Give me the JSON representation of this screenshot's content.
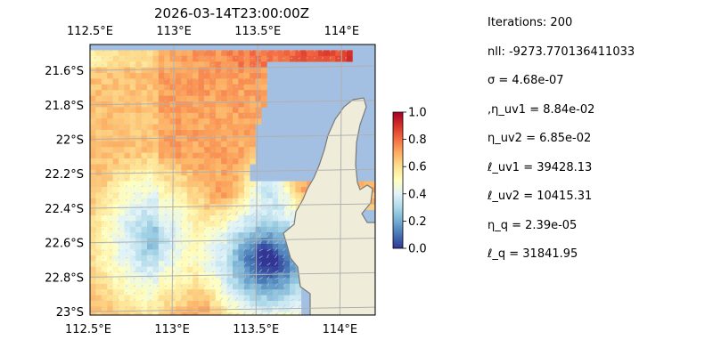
{
  "chart_data": {
    "type": "heatmap",
    "title": "2026-03-14T23:00:00Z",
    "x_tick_labels_top": [
      "112.5°E",
      "113°E",
      "113.5°E",
      "114°E"
    ],
    "x_tick_labels_bottom": [
      "112.5°E",
      "113°E",
      "113.5°E",
      "114°E"
    ],
    "y_tick_labels": [
      "21.6°S",
      "21.8°S",
      "22°S",
      "22.2°S",
      "22.4°S",
      "22.6°S",
      "22.8°S",
      "23°S"
    ],
    "x_ticks": [
      112.5,
      113.0,
      113.5,
      114.0
    ],
    "y_ticks": [
      -21.6,
      -21.8,
      -22.0,
      -22.2,
      -22.4,
      -22.6,
      -22.8,
      -23.0
    ],
    "xlim": [
      112.5,
      114.2
    ],
    "ylim": [
      -23.02,
      -21.45
    ],
    "grid": true,
    "colorbar": {
      "ticks": [
        0.0,
        0.2,
        0.4,
        0.6,
        0.8,
        1.0
      ],
      "tick_labels": [
        "0.0",
        "0.2",
        "0.4",
        "0.6",
        "0.8",
        "1.0"
      ],
      "range": [
        0,
        1
      ],
      "colormap": "RdYlBu_r"
    },
    "colors": {
      "ocean": "#a3bfe2",
      "land": "#efedda",
      "grid": "#b0b0b0",
      "vectors": "#c4c4e0"
    }
  },
  "stats": [
    "Iterations: 200",
    "nll: -9273.770136411033",
    "σ = 4.68e-07",
    ",η_uv1 = 8.84e-02",
    "η_uv2 = 6.85e-02",
    "ℓ_uv1 = 39428.13",
    "ℓ_uv2 = 10415.31",
    "η_q = 2.39e-05",
    "ℓ_q = 31841.95"
  ]
}
